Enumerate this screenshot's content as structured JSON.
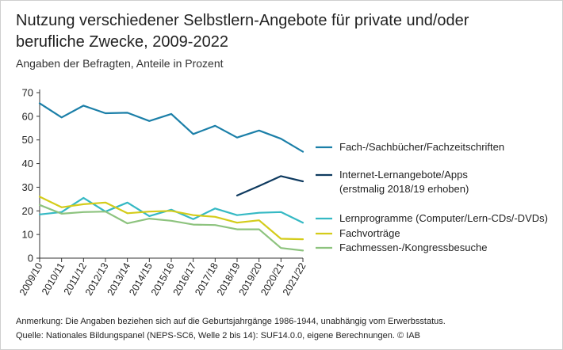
{
  "title": "Nutzung verschiedener Selbstlern-Angebote für private und/oder berufliche Zwecke, 2009-2022",
  "subtitle": "Angaben der Befragten, Anteile in Prozent",
  "note": "Anmerkung: Die Angaben beziehen sich auf die Geburtsjahrgänge 1986-1944, unabhängig vom Erwerbsstatus.",
  "source": "Quelle: Nationales Bildungspanel (NEPS-SC6, Welle 2 bis 14): SUF14.0.0, eigene Berechnungen. © IAB",
  "chart_data": {
    "type": "line",
    "categories": [
      "2009/10",
      "2010/11",
      "2011/12",
      "2012/13",
      "2013/14",
      "2014/15",
      "2015/16",
      "2016/17",
      "2017/18",
      "2018/19",
      "2019/20",
      "2020/21",
      "2021/22"
    ],
    "ylim": [
      0,
      70
    ],
    "yticks": [
      0,
      10,
      20,
      30,
      40,
      50,
      60,
      70
    ],
    "grid": false,
    "legend_position": "right",
    "series": [
      {
        "name": "Fach-/Sachbücher/Fachzeitschriften",
        "name_lines": [
          "Fach-/Sachbücher/Fachzeitschriften"
        ],
        "color": "#1b7fa8",
        "values": [
          65.5,
          59.5,
          64.5,
          61.3,
          61.5,
          58,
          61,
          52.5,
          56,
          51,
          54,
          50.5,
          45
        ]
      },
      {
        "name": "Internet-Lernangebote/Apps (erstmalig 2018/19 erhoben)",
        "name_lines": [
          "Internet-Lernangebote/Apps",
          "(erstmalig 2018/19 erhoben)"
        ],
        "color": "#0e3a5f",
        "values": [
          null,
          null,
          null,
          null,
          null,
          null,
          null,
          null,
          null,
          26.5,
          30.5,
          34.7,
          32.5
        ]
      },
      {
        "name": "Lernprogramme (Computer/Lern-CDs/-DVDs)",
        "name_lines": [
          "Lernprogramme (Computer/Lern-CDs/-DVDs)"
        ],
        "color": "#35b9c4",
        "values": [
          18.5,
          19.5,
          25.5,
          19.7,
          23.5,
          17.8,
          20.5,
          16.5,
          21,
          18.2,
          19.2,
          19.5,
          15
        ]
      },
      {
        "name": "Fachvorträge",
        "name_lines": [
          "Fachvorträge"
        ],
        "color": "#d4cc1a",
        "values": [
          26,
          21.5,
          22.8,
          23.5,
          19,
          19.7,
          20,
          18.2,
          17.5,
          15,
          16,
          8.2,
          8
        ]
      },
      {
        "name": "Fachmessen-/Kongressbesuche",
        "name_lines": [
          "Fachmessen-/Kongressbesuche"
        ],
        "color": "#8dc37e",
        "values": [
          22.5,
          18.8,
          19.5,
          19.7,
          14.7,
          16.7,
          15.8,
          14.2,
          14,
          12.2,
          12.2,
          4.3,
          3.2
        ]
      }
    ]
  }
}
